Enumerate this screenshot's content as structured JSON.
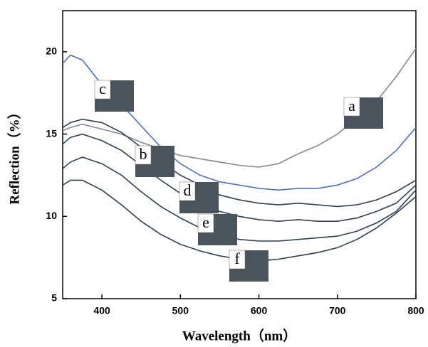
{
  "chart_data": {
    "type": "line",
    "x_label": "Wavelength（nm）",
    "y_label": "Reflection（%）",
    "x": [
      350,
      360,
      375,
      400,
      425,
      450,
      475,
      500,
      525,
      550,
      575,
      600,
      625,
      650,
      675,
      700,
      725,
      750,
      775,
      800
    ],
    "series": [
      {
        "name": "a",
        "color": "#888888",
        "values": [
          15.2,
          15.4,
          15.6,
          15.3,
          15.0,
          14.5,
          14.1,
          13.7,
          13.5,
          13.3,
          13.1,
          13.0,
          13.2,
          13.8,
          14.3,
          15.0,
          16.0,
          17.0,
          18.5,
          20.2
        ]
      },
      {
        "name": "c",
        "color": "#4a70c8",
        "values": [
          19.3,
          19.8,
          19.5,
          18.0,
          16.8,
          15.5,
          14.2,
          13.2,
          12.5,
          12.1,
          11.9,
          11.7,
          11.6,
          11.7,
          11.7,
          11.9,
          12.3,
          13.0,
          14.0,
          15.4
        ]
      },
      {
        "name": "b",
        "color": "#2e3f5c",
        "values": [
          15.4,
          15.7,
          15.9,
          15.7,
          15.1,
          14.2,
          13.3,
          12.5,
          11.9,
          11.3,
          11.0,
          10.8,
          10.7,
          10.8,
          10.7,
          10.6,
          10.7,
          11.0,
          11.5,
          12.2
        ]
      },
      {
        "name": "d",
        "color": "#2e3f5c",
        "values": [
          14.4,
          14.8,
          15.0,
          14.6,
          14.0,
          13.1,
          12.2,
          11.4,
          10.8,
          10.3,
          10.0,
          9.8,
          9.7,
          9.8,
          9.7,
          9.7,
          9.9,
          10.3,
          10.8,
          11.9
        ]
      },
      {
        "name": "e",
        "color": "#2e3f5c",
        "values": [
          12.9,
          13.3,
          13.6,
          13.2,
          12.5,
          11.5,
          10.6,
          9.9,
          9.3,
          8.9,
          8.6,
          8.5,
          8.5,
          8.6,
          8.7,
          8.8,
          9.1,
          9.6,
          10.3,
          11.6
        ]
      },
      {
        "name": "f",
        "color": "#2e3f5c",
        "values": [
          11.9,
          12.2,
          12.2,
          11.6,
          10.7,
          9.7,
          8.9,
          8.3,
          7.9,
          7.6,
          7.4,
          7.3,
          7.4,
          7.6,
          7.8,
          8.1,
          8.6,
          9.3,
          10.2,
          11.2
        ]
      }
    ],
    "xlim": [
      350,
      800
    ],
    "xticks": [
      400,
      500,
      600,
      700,
      800
    ],
    "ylim": [
      5,
      22.5
    ],
    "yticks": [
      5,
      10,
      15,
      20
    ]
  }
}
